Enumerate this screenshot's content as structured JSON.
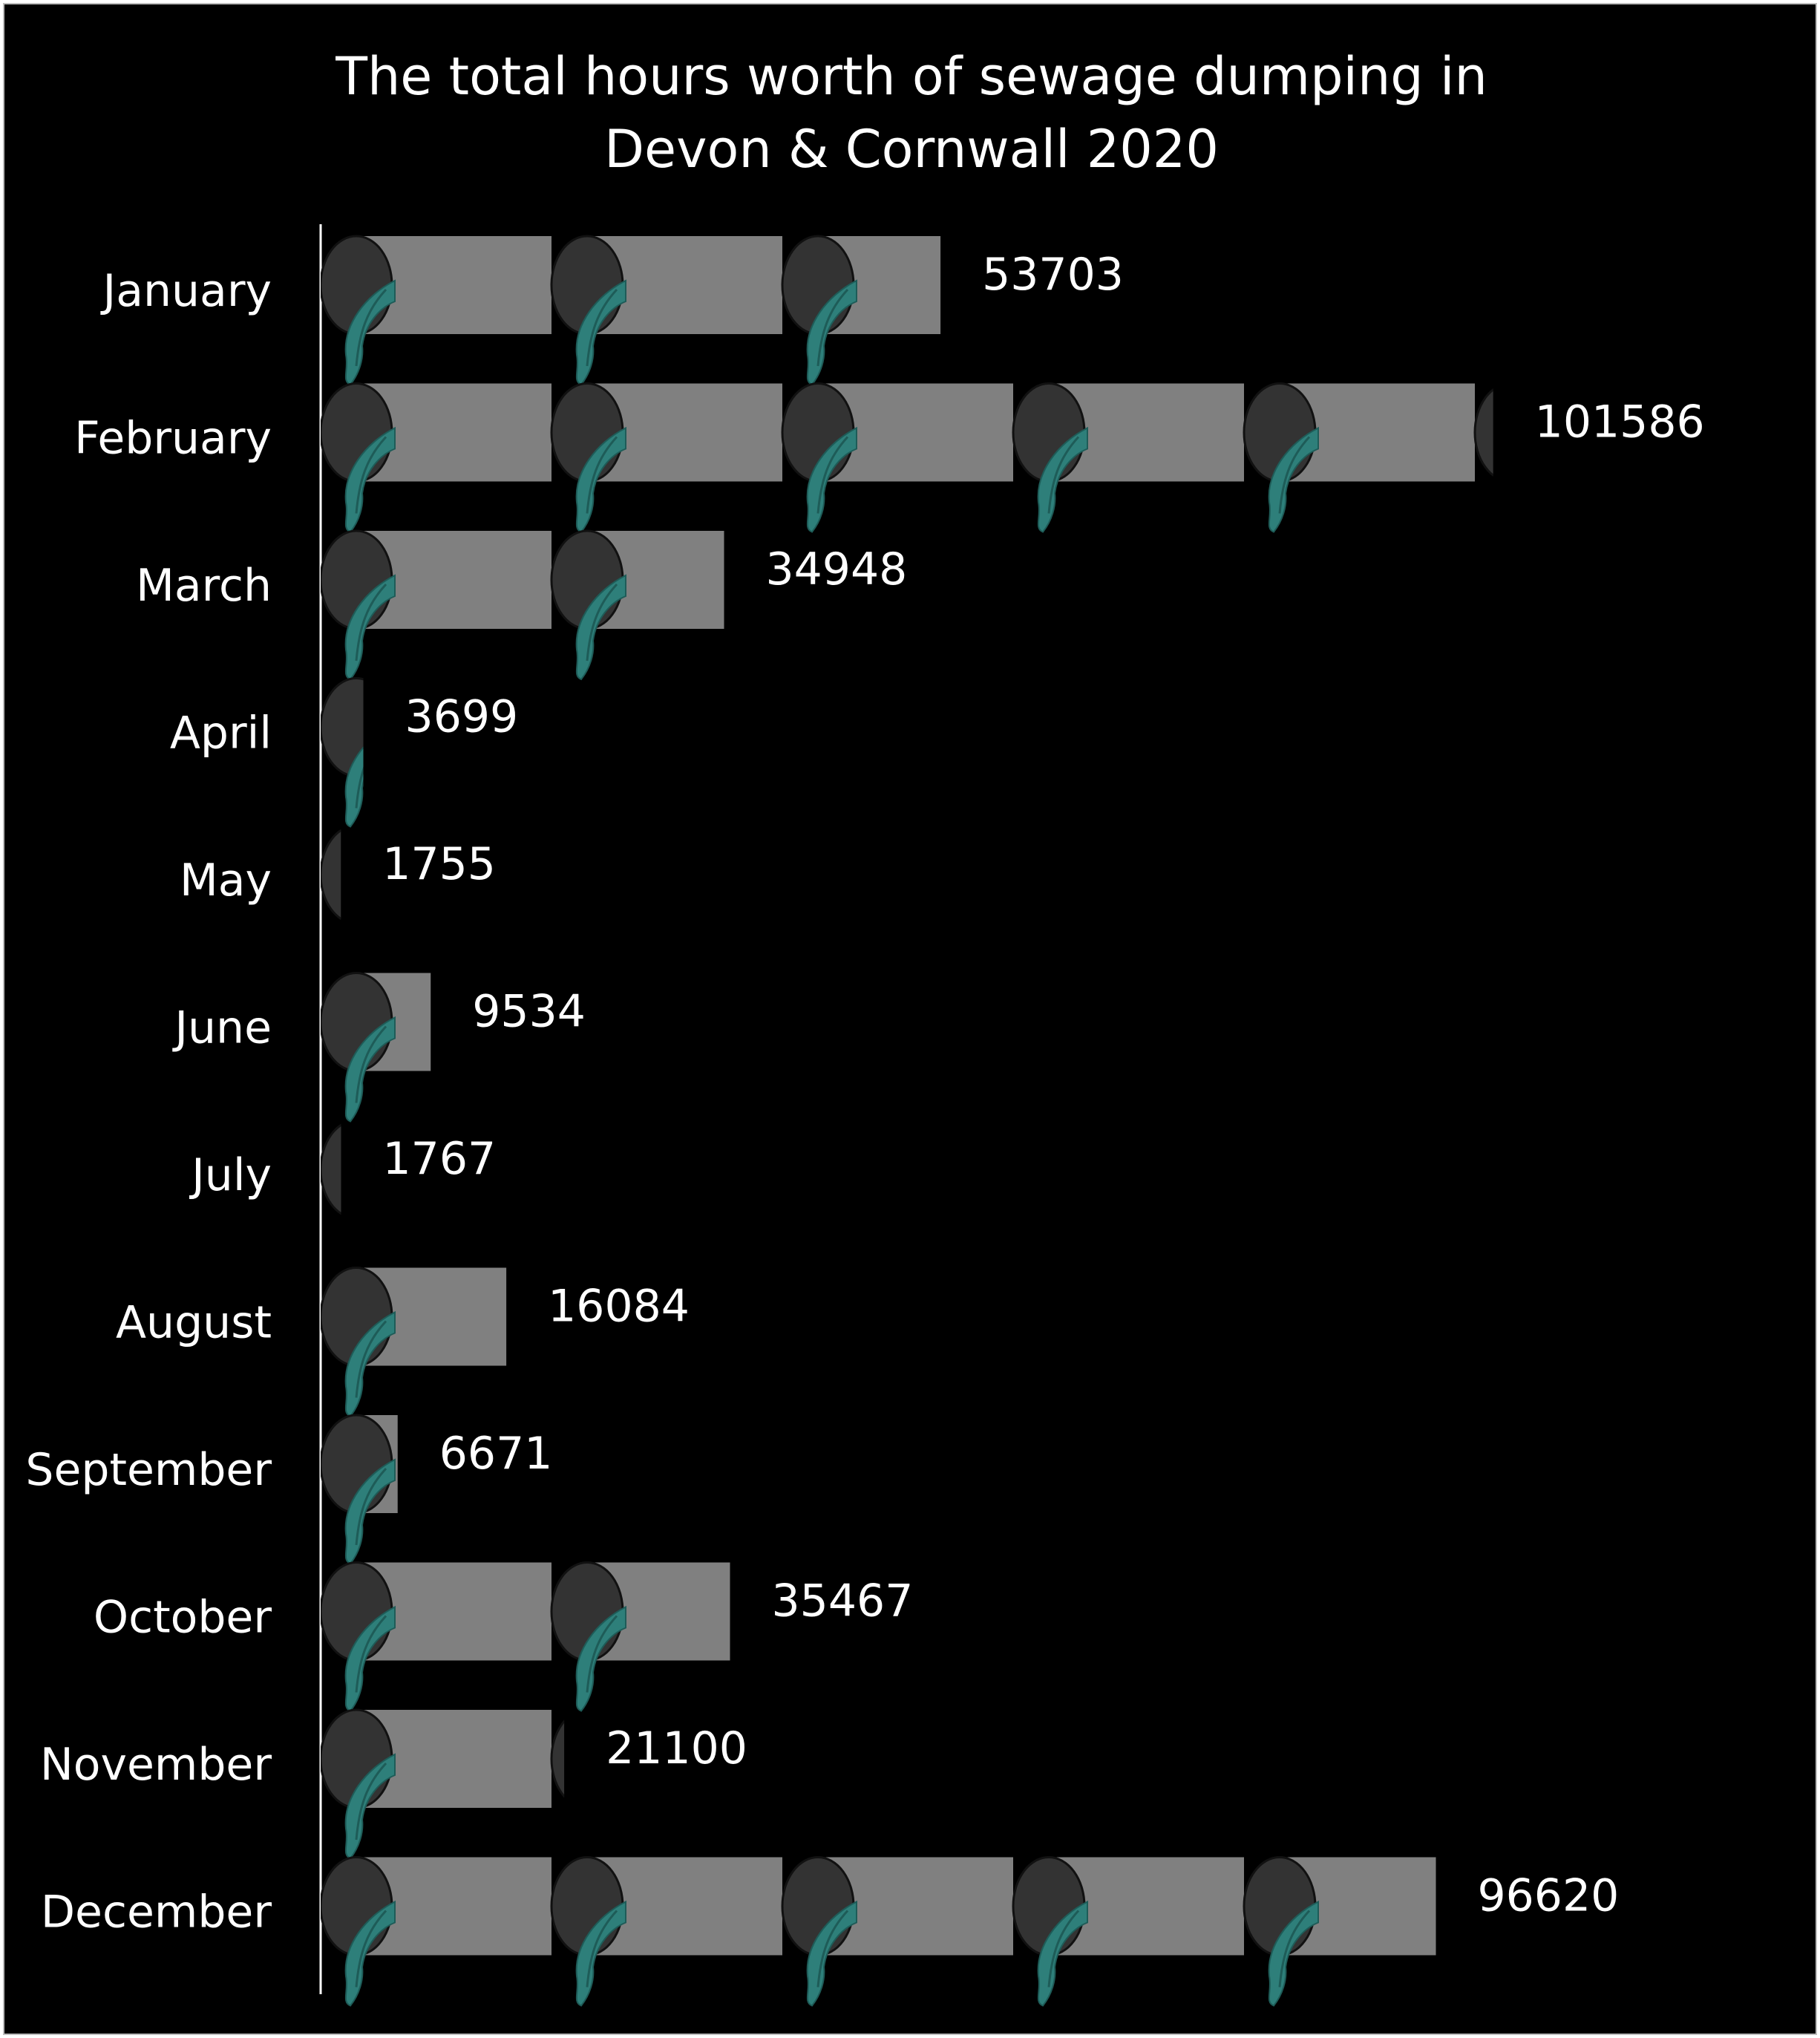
{
  "chart_data": {
    "type": "bar",
    "orientation": "horizontal",
    "title_lines": [
      "The total hours worth of sewage dumping in",
      "Devon & Cornwall 2020"
    ],
    "categories": [
      "January",
      "February",
      "March",
      "April",
      "May",
      "June",
      "July",
      "August",
      "September",
      "October",
      "November",
      "December"
    ],
    "values": [
      53703,
      101586,
      34948,
      3699,
      1755,
      9534,
      1767,
      16084,
      6671,
      35467,
      21100,
      96620
    ],
    "data_labels": [
      "53703",
      "101586",
      "34948",
      "3699",
      "1755",
      "9534",
      "1767",
      "16084",
      "6671",
      "35467",
      "21100",
      "96620"
    ],
    "icon_unit_value": 20000,
    "marker": "sewage-pipe-icon",
    "grid": false,
    "legend": "none",
    "colors": {
      "background": "#000000",
      "pipe_body": "#808080",
      "pipe_opening": "#333333",
      "sewage": "#2e7f7a",
      "axis": "#ffffff",
      "text": "#ffffff"
    }
  }
}
